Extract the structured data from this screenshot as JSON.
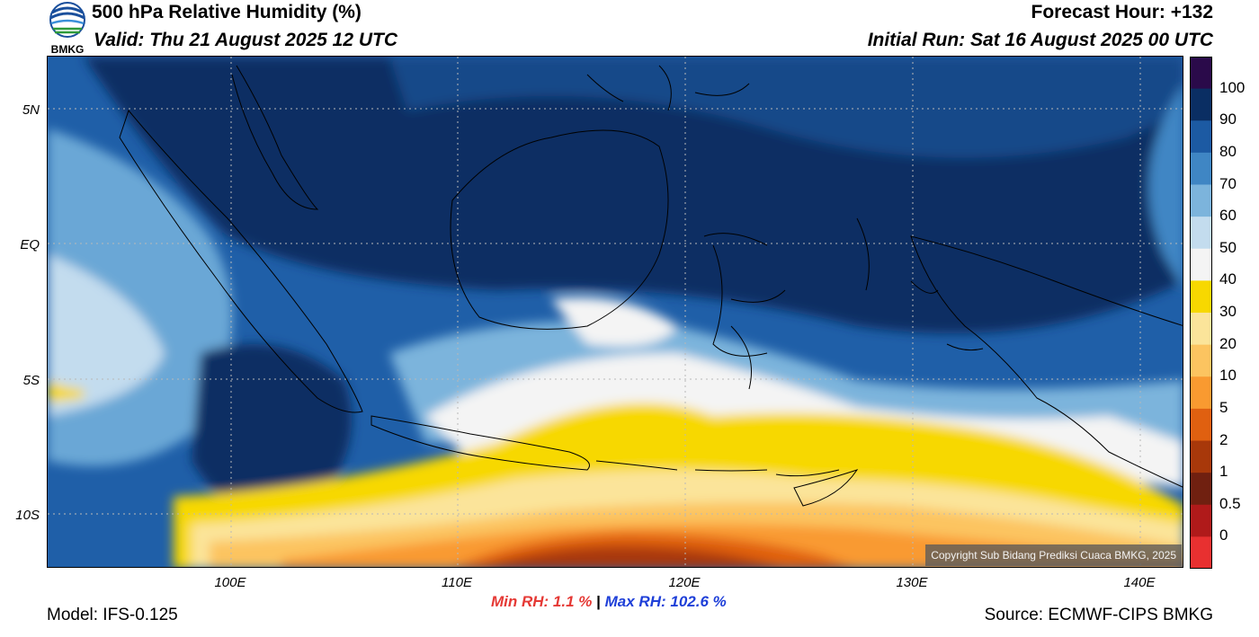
{
  "header": {
    "title": "500 hPa Relative Humidity (%)",
    "valid": "Valid: Thu 21 August 2025 12 UTC",
    "forecast_hour": "Forecast Hour: +132",
    "initial_run": "Initial Run: Sat 16 August 2025 00 UTC"
  },
  "logo": {
    "text": "BMKG",
    "icon": "bmkg-logo-icon"
  },
  "map": {
    "lat_labels": [
      "5N",
      "EQ",
      "5S",
      "10S"
    ],
    "lon_labels": [
      "100E",
      "110E",
      "120E",
      "130E",
      "140E"
    ],
    "copyright": "Copyright Sub Bidang Prediksi Cuaca BMKG, 2025"
  },
  "colorbar": {
    "labels": [
      "100",
      "90",
      "80",
      "70",
      "60",
      "50",
      "40",
      "30",
      "20",
      "10",
      "5",
      "2",
      "1",
      "0.5",
      "0"
    ],
    "colors": [
      "#2a0a4a",
      "#0a2e63",
      "#1c5aa3",
      "#3f86c4",
      "#7cb4dc",
      "#c3dcee",
      "#f4f4f4",
      "#f7d800",
      "#fbe49a",
      "#fcc460",
      "#f99a30",
      "#e06010",
      "#a8380a",
      "#702010",
      "#b01a1a",
      "#e83030"
    ]
  },
  "stats": {
    "min_rh": "Min RH:   1.1 %",
    "separator": "|",
    "max_rh": "Max RH: 102.6 %"
  },
  "footer": {
    "model": "Model: IFS-0.125",
    "source": "Source: ECMWF-CIPS BMKG"
  }
}
